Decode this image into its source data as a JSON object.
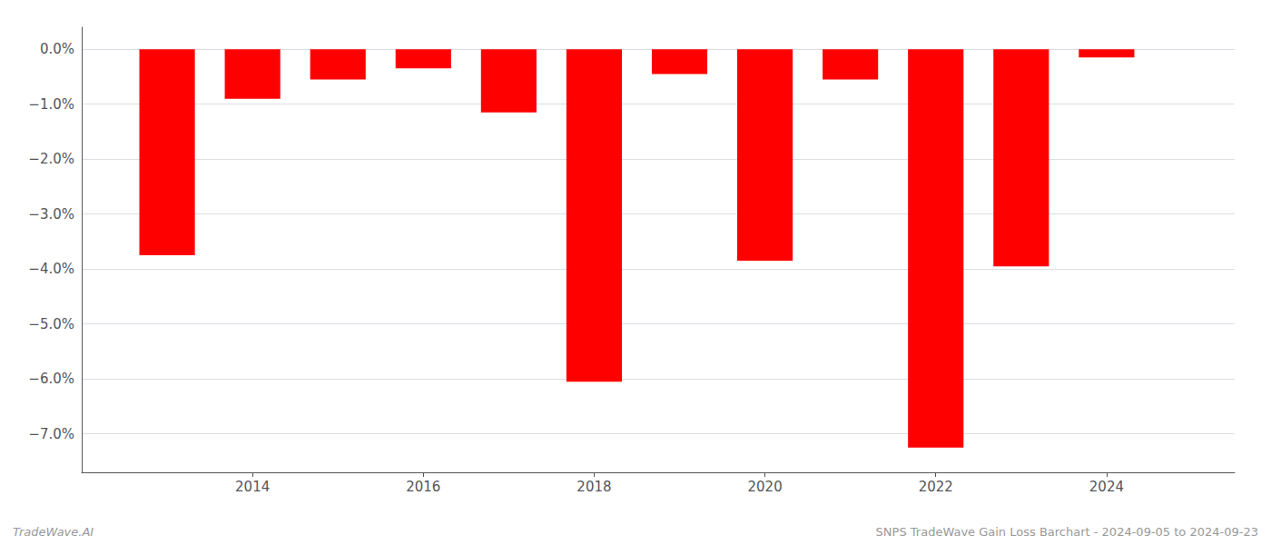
{
  "chart_data": {
    "type": "bar",
    "x": [
      2013,
      2014,
      2015,
      2016,
      2017,
      2018,
      2019,
      2020,
      2021,
      2022,
      2023,
      2024
    ],
    "values": [
      -3.75,
      -0.9,
      -0.55,
      -0.35,
      -1.15,
      -6.05,
      -0.45,
      -3.85,
      -0.55,
      -7.25,
      -3.95,
      -0.15
    ],
    "color": "#ff0000",
    "xlim": [
      2012.0,
      2025.5
    ],
    "xticks": [
      2014,
      2016,
      2018,
      2020,
      2022,
      2024
    ],
    "ylim": [
      -7.7,
      0.4
    ],
    "yticks": [
      {
        "value": 0.0,
        "label": "0.0%"
      },
      {
        "value": -1.0,
        "label": "−1.0%"
      },
      {
        "value": -2.0,
        "label": "−2.0%"
      },
      {
        "value": -3.0,
        "label": "−3.0%"
      },
      {
        "value": -4.0,
        "label": "−4.0%"
      },
      {
        "value": -5.0,
        "label": "−5.0%"
      },
      {
        "value": -6.0,
        "label": "−6.0%"
      },
      {
        "value": -7.0,
        "label": "−7.0%"
      }
    ],
    "grid": true,
    "annotations": [
      "TradeWave.AI",
      "SNPS TradeWave Gain Loss Barchart - 2024-09-05 to 2024-09-23"
    ]
  }
}
